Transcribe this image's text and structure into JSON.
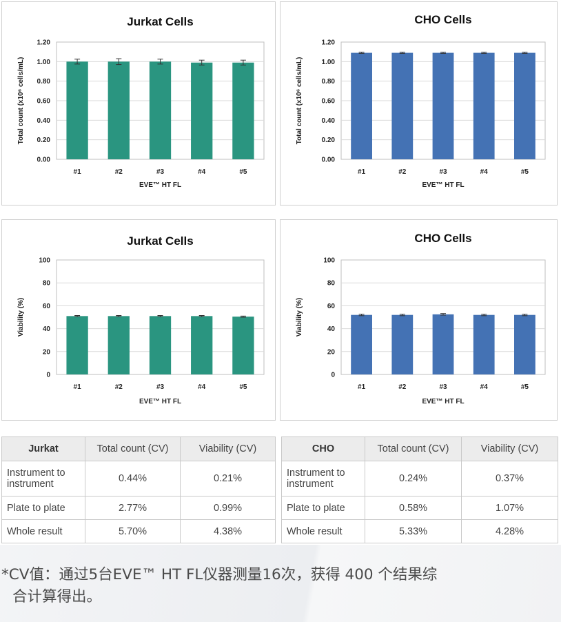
{
  "chart_data": [
    {
      "type": "bar",
      "title": "Jurkat Cells",
      "xlabel": "EVE™ HT FL",
      "ylabel": "Total count (x10⁶ cells/mL)",
      "categories": [
        "#1",
        "#2",
        "#3",
        "#4",
        "#5"
      ],
      "values": [
        1.0,
        1.0,
        1.0,
        0.99,
        0.99
      ],
      "errors": [
        0.025,
        0.03,
        0.025,
        0.025,
        0.025
      ],
      "ylim": [
        0,
        1.2
      ],
      "yticks": [
        "0.00",
        "0.20",
        "0.40",
        "0.60",
        "0.80",
        "1.00",
        "1.20"
      ],
      "grid": true,
      "color": "#2a9580"
    },
    {
      "type": "bar",
      "title": "CHO Cells",
      "xlabel": "EVE™ HT FL",
      "ylabel": "Total count (x10⁶ cells/mL)",
      "categories": [
        "#1",
        "#2",
        "#3",
        "#4",
        "#5"
      ],
      "values": [
        1.09,
        1.09,
        1.09,
        1.09,
        1.09
      ],
      "errors": [
        0.006,
        0.006,
        0.006,
        0.006,
        0.006
      ],
      "ylim": [
        0,
        1.2
      ],
      "yticks": [
        "0.00",
        "0.20",
        "0.40",
        "0.60",
        "0.80",
        "1.00",
        "1.20"
      ],
      "grid": true,
      "color": "#4472b4"
    },
    {
      "type": "bar",
      "title": "Jurkat Cells",
      "xlabel": "EVE™ HT FL",
      "ylabel": "Viability (%)",
      "categories": [
        "#1",
        "#2",
        "#3",
        "#4",
        "#5"
      ],
      "values": [
        51,
        51,
        51,
        51,
        50.5
      ],
      "errors": [
        0.5,
        0.5,
        0.5,
        0.5,
        0.5
      ],
      "ylim": [
        0,
        100
      ],
      "yticks": [
        "0",
        "20",
        "40",
        "60",
        "80",
        "100"
      ],
      "grid": true,
      "color": "#2a9580"
    },
    {
      "type": "bar",
      "title": "CHO Cells",
      "xlabel": "EVE™ HT FL",
      "ylabel": "Viability (%)",
      "categories": [
        "#1",
        "#2",
        "#3",
        "#4",
        "#5"
      ],
      "values": [
        52,
        52,
        52.5,
        52,
        52
      ],
      "errors": [
        0.7,
        0.7,
        0.7,
        0.7,
        0.7
      ],
      "ylim": [
        0,
        100
      ],
      "yticks": [
        "0",
        "20",
        "40",
        "60",
        "80",
        "100"
      ],
      "grid": true,
      "color": "#4472b4"
    }
  ],
  "tables": [
    {
      "headers": [
        "Jurkat",
        "Total count (CV)",
        "Viability (CV)"
      ],
      "rows": [
        [
          "Instrument to instrument",
          "0.44%",
          "0.21%"
        ],
        [
          "Plate to plate",
          "2.77%",
          "0.99%"
        ],
        [
          "Whole result",
          "5.70%",
          "4.38%"
        ]
      ]
    },
    {
      "headers": [
        "CHO",
        "Total count (CV)",
        "Viability (CV)"
      ],
      "rows": [
        [
          "Instrument to instrument",
          "0.24%",
          "0.37%"
        ],
        [
          "Plate to plate",
          "0.58%",
          "1.07%"
        ],
        [
          "Whole result",
          "5.33%",
          "4.28%"
        ]
      ]
    }
  ],
  "footnote": {
    "line1": "*CV值：通过5台EVE™ HT FL仪器测量16次，获得 400 个结果综",
    "line2": "合计算得出。"
  }
}
